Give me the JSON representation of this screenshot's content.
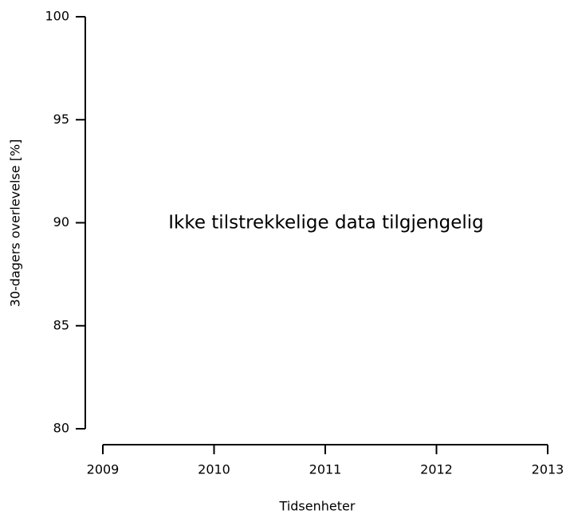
{
  "chart_data": {
    "type": "line",
    "xlabel": "Tidsenheter",
    "ylabel": "30-dagers overlevelse [%]",
    "annotation": "Ikke tilstrekkelige data tilgjengelig",
    "series": [],
    "xlim": [
      2009,
      2013
    ],
    "xticks": [
      2009,
      2010,
      2011,
      2012,
      2013
    ],
    "ylim": [
      80,
      100
    ],
    "yticks": [
      80,
      85,
      90,
      95,
      100
    ],
    "grid": false
  }
}
